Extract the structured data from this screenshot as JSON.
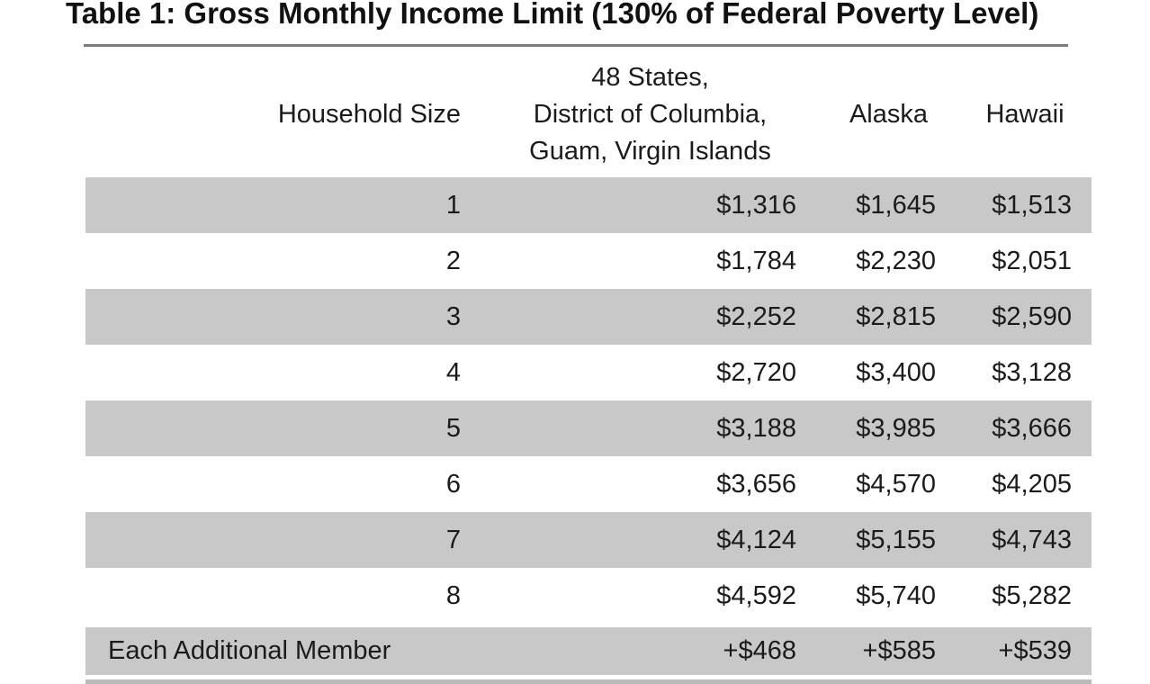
{
  "page": {
    "title": "Table 1: Gross Monthly Income Limit (130% of Federal Poverty Level)"
  },
  "table": {
    "header": {
      "household_size": "Household Size",
      "region_lines": [
        "48 States,",
        "District of Columbia,",
        "Guam, Virgin Islands"
      ],
      "alaska": "Alaska",
      "hawaii": "Hawaii"
    },
    "rows": [
      {
        "size": "1",
        "values": [
          "$1,316",
          "$1,645",
          "$1,513"
        ]
      },
      {
        "size": "2",
        "values": [
          "$1,784",
          "$2,230",
          "$2,051"
        ]
      },
      {
        "size": "3",
        "values": [
          "$2,252",
          "$2,815",
          "$2,590"
        ]
      },
      {
        "size": "4",
        "values": [
          "$2,720",
          "$3,400",
          "$3,128"
        ]
      },
      {
        "size": "5",
        "values": [
          "$3,188",
          "$3,985",
          "$3,666"
        ]
      },
      {
        "size": "6",
        "values": [
          "$3,656",
          "$4,570",
          "$4,205"
        ]
      },
      {
        "size": "7",
        "values": [
          "$4,124",
          "$5,155",
          "$4,743"
        ]
      },
      {
        "size": "8",
        "values": [
          "$4,592",
          "$5,740",
          "$5,282"
        ]
      },
      {
        "size": "Each Additional Member",
        "values": [
          "+$468",
          "+$585",
          "+$539"
        ]
      }
    ],
    "colors": {
      "shaded_row": "#c8c8c8",
      "title_rule": "#7c7c7c",
      "bottom_bar": "#b9b9b9",
      "text": "#1b1b1b"
    }
  }
}
